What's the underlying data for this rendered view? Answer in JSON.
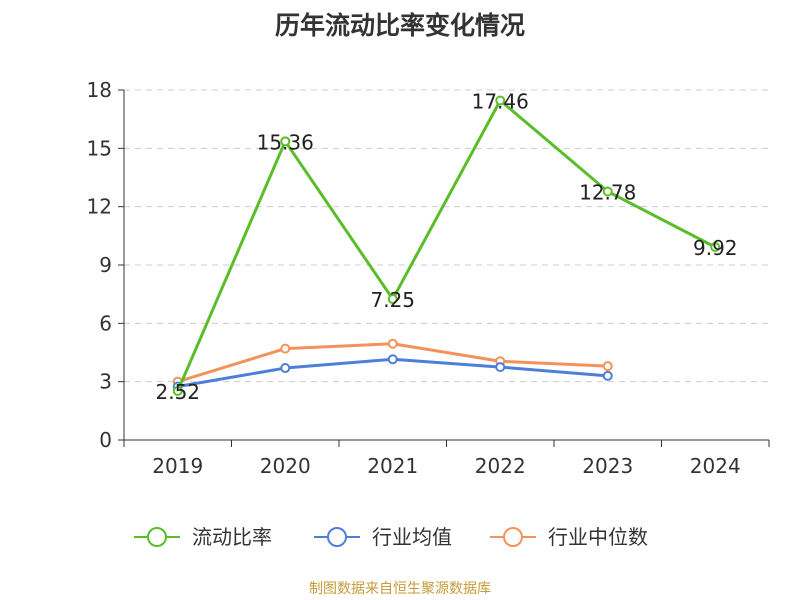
{
  "chart_data": {
    "type": "line",
    "title": "历年流动比率变化情况",
    "categories": [
      "2019",
      "2020",
      "2021",
      "2022",
      "2023",
      "2024"
    ],
    "ylim": [
      0,
      18
    ],
    "yticks": [
      0,
      3,
      6,
      9,
      12,
      15,
      18
    ],
    "grid": true,
    "legend_position": "bottom",
    "series": [
      {
        "name": "流动比率",
        "color": "#5cbd2b",
        "values": [
          2.52,
          15.36,
          7.25,
          17.46,
          12.78,
          9.92
        ],
        "labels": [
          "2.52",
          "15.36",
          "7.25",
          "17.46",
          "12.78",
          "9.92"
        ]
      },
      {
        "name": "行业均值",
        "color": "#4e7fd8",
        "values": [
          2.75,
          3.7,
          4.15,
          3.75,
          3.3,
          null
        ]
      },
      {
        "name": "行业中位数",
        "color": "#f3925a",
        "values": [
          3.0,
          4.7,
          4.95,
          4.05,
          3.8,
          null
        ]
      }
    ]
  },
  "source": "制图数据来自恒生聚源数据库"
}
